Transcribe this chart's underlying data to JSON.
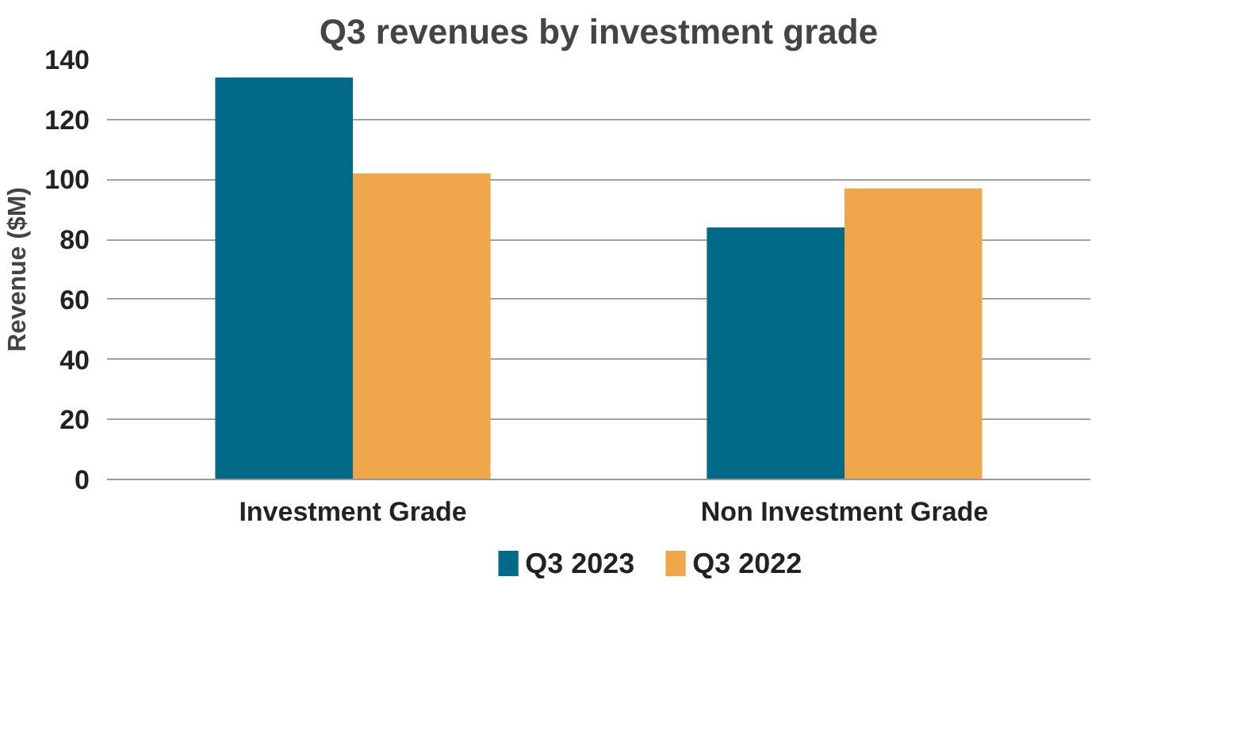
{
  "chart_data": {
    "type": "bar",
    "title": "Q3 revenues by investment grade",
    "ylabel": "Revenue ($M)",
    "categories": [
      "Investment Grade",
      "Non Investment Grade"
    ],
    "series": [
      {
        "name": "Q3 2023",
        "color": "#006a88",
        "values": [
          134,
          84
        ]
      },
      {
        "name": "Q3 2022",
        "color": "#f0a64a",
        "values": [
          102,
          97
        ]
      }
    ],
    "ylim": [
      0,
      140
    ],
    "yticks": [
      0,
      20,
      40,
      60,
      80,
      100,
      120,
      140
    ],
    "grid": "y",
    "legend": "bottom"
  }
}
